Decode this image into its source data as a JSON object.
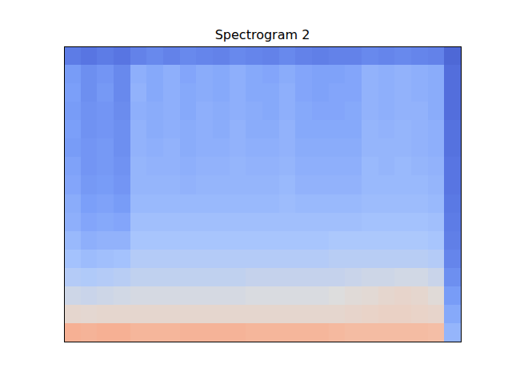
{
  "chart_data": {
    "type": "heatmap",
    "title": "Spectrogram 2",
    "tick_labels": false,
    "color_range": [
      0,
      100
    ],
    "cells": [
      [
        14,
        12,
        14,
        12,
        16,
        18,
        16,
        18,
        17,
        16,
        18,
        17,
        16,
        18,
        16,
        15,
        16,
        16,
        18,
        17,
        18,
        17,
        16,
        8
      ],
      [
        24,
        20,
        22,
        18,
        30,
        28,
        30,
        27,
        29,
        28,
        30,
        28,
        27,
        29,
        27,
        26,
        26,
        27,
        31,
        30,
        31,
        30,
        29,
        10
      ],
      [
        25,
        20,
        23,
        18,
        31,
        28,
        30,
        28,
        29,
        28,
        30,
        28,
        28,
        30,
        27,
        26,
        27,
        27,
        31,
        30,
        31,
        30,
        29,
        10
      ],
      [
        24,
        21,
        22,
        19,
        30,
        29,
        30,
        28,
        30,
        29,
        30,
        29,
        28,
        30,
        28,
        27,
        27,
        28,
        31,
        30,
        31,
        31,
        29,
        10
      ],
      [
        25,
        21,
        22,
        20,
        31,
        29,
        30,
        29,
        30,
        29,
        31,
        29,
        29,
        31,
        28,
        28,
        28,
        28,
        32,
        31,
        32,
        31,
        30,
        11
      ],
      [
        24,
        22,
        23,
        20,
        31,
        30,
        31,
        29,
        30,
        30,
        31,
        30,
        30,
        31,
        29,
        29,
        29,
        29,
        32,
        32,
        32,
        31,
        30,
        11
      ],
      [
        26,
        22,
        23,
        21,
        32,
        31,
        31,
        30,
        31,
        31,
        32,
        31,
        31,
        32,
        30,
        30,
        30,
        30,
        33,
        32,
        33,
        32,
        31,
        12
      ],
      [
        27,
        23,
        24,
        22,
        32,
        32,
        32,
        31,
        32,
        32,
        32,
        32,
        32,
        33,
        31,
        31,
        31,
        31,
        33,
        33,
        33,
        33,
        32,
        12
      ],
      [
        29,
        25,
        26,
        24,
        33,
        33,
        33,
        33,
        33,
        33,
        33,
        33,
        33,
        34,
        33,
        33,
        33,
        33,
        34,
        34,
        34,
        34,
        33,
        13
      ],
      [
        30,
        27,
        28,
        27,
        35,
        35,
        35,
        35,
        35,
        35,
        35,
        35,
        35,
        35,
        35,
        35,
        35,
        35,
        36,
        36,
        36,
        36,
        35,
        14
      ],
      [
        33,
        30,
        31,
        31,
        37,
        37,
        37,
        37,
        37,
        37,
        37,
        37,
        37,
        37,
        37,
        37,
        38,
        38,
        38,
        38,
        38,
        38,
        37,
        15
      ],
      [
        36,
        34,
        35,
        36,
        40,
        40,
        40,
        40,
        40,
        40,
        40,
        40,
        40,
        40,
        40,
        40,
        41,
        41,
        41,
        41,
        41,
        41,
        40,
        17
      ],
      [
        40,
        39,
        40,
        41,
        43,
        43,
        43,
        43,
        43,
        43,
        43,
        44,
        44,
        44,
        44,
        44,
        44,
        45,
        46,
        46,
        47,
        47,
        45,
        20
      ],
      [
        46,
        45,
        46,
        47,
        48,
        48,
        48,
        48,
        48,
        48,
        48,
        49,
        49,
        49,
        49,
        49,
        50,
        52,
        53,
        55,
        56,
        55,
        52,
        24
      ],
      [
        55,
        54,
        55,
        55,
        55,
        55,
        55,
        55,
        55,
        55,
        55,
        55,
        55,
        55,
        55,
        55,
        55,
        56,
        57,
        58,
        58,
        57,
        56,
        28
      ],
      [
        72,
        71,
        72,
        72,
        70,
        70,
        70,
        71,
        71,
        71,
        71,
        70,
        70,
        70,
        70,
        70,
        69,
        68,
        68,
        68,
        68,
        68,
        67,
        32
      ]
    ]
  }
}
